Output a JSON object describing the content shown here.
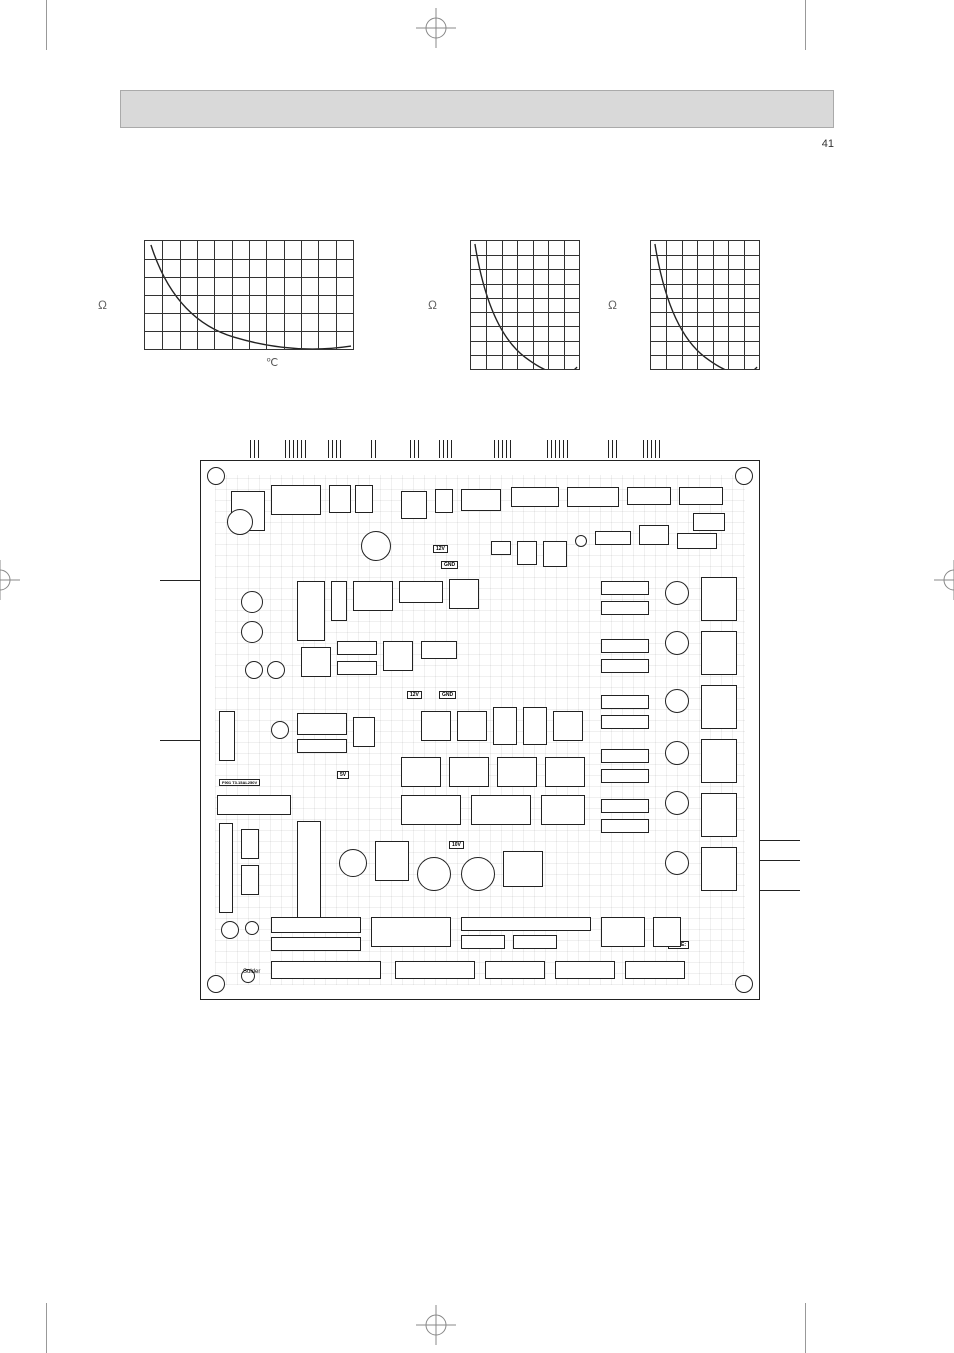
{
  "page_number": "41",
  "omega_symbol": "Ω",
  "celsius_symbol": "℃",
  "pcb_labels": {
    "v12": "12V",
    "gnd": "GND",
    "v5": "5V",
    "v10": "10V",
    "fuse": "F901  T3.15AL250V",
    "date": "DATE:",
    "solder": "Solder"
  },
  "chart1": {
    "type": "line",
    "grid_cols": 12,
    "grid_rows": 6,
    "curve_color": "#222222",
    "background_color": "#ffffff",
    "grid_color": "#333333"
  },
  "chart2": {
    "type": "line",
    "grid_cols": 7,
    "grid_rows": 9,
    "curve_color": "#222222"
  },
  "chart3": {
    "type": "line",
    "grid_cols": 7,
    "grid_rows": 9,
    "curve_color": "#222222"
  }
}
